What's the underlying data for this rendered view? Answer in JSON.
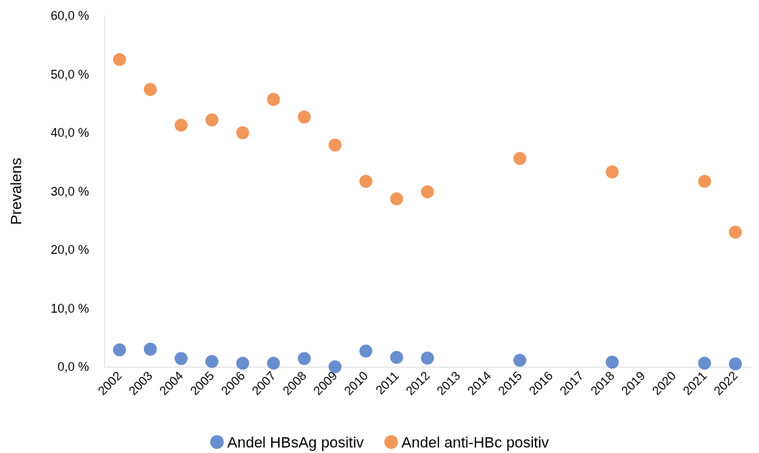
{
  "chart_data": {
    "type": "scatter",
    "ylabel": "Prevalens",
    "categories": [
      "2002",
      "2003",
      "2004",
      "2005",
      "2006",
      "2007",
      "2008",
      "2009",
      "2010",
      "2011",
      "2012",
      "2013",
      "2014",
      "2015",
      "2016",
      "2017",
      "2018",
      "2019",
      "2020",
      "2021",
      "2022"
    ],
    "series": [
      {
        "name": "Andel HBsAg positiv",
        "color": "#4472c4",
        "values": [
          2.9,
          3.0,
          1.4,
          0.9,
          0.6,
          0.6,
          1.4,
          0,
          2.7,
          1.6,
          1.5,
          null,
          null,
          1.1,
          null,
          null,
          0.8,
          null,
          null,
          0.6,
          0.5
        ]
      },
      {
        "name": "Andel anti-HBc positiv",
        "color": "#ed7d31",
        "values": [
          52.5,
          47.4,
          41.3,
          42.2,
          40.0,
          45.7,
          42.7,
          37.9,
          31.7,
          28.7,
          29.9,
          null,
          null,
          35.6,
          null,
          null,
          33.3,
          null,
          null,
          31.7,
          23.0
        ]
      }
    ],
    "ylim": [
      0,
      60
    ],
    "yticks": [
      {
        "value": 0,
        "label": "0,0 %"
      },
      {
        "value": 10,
        "label": "10,0 %"
      },
      {
        "value": 20,
        "label": "20,0 %"
      },
      {
        "value": 30,
        "label": "30,0 %"
      },
      {
        "value": 40,
        "label": "40,0 %"
      },
      {
        "value": 50,
        "label": "50,0 %"
      },
      {
        "value": 60,
        "label": "60,0 %"
      }
    ],
    "grid": false,
    "legend": "bottom",
    "marker": "circle"
  }
}
